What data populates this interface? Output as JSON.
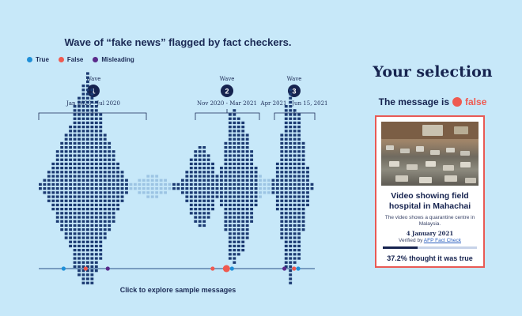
{
  "chart_data": {
    "type": "bar",
    "title": "Wave of “fake news” flagged by fact checkers.",
    "legend": [
      {
        "label": "True",
        "color": "#1e8fd8"
      },
      {
        "label": "False",
        "color": "#ef5a50"
      },
      {
        "label": "Misleading",
        "color": "#5a2a8a"
      }
    ],
    "legend_placement": "top-left",
    "waves": [
      {
        "label": "Wave",
        "number": "1",
        "range": "Jan 2020 - Jul 2020"
      },
      {
        "label": "Wave",
        "number": "2",
        "range": "Nov 2020 - Mar 2021"
      },
      {
        "label": "Wave",
        "number": "3",
        "range": "Apr 2021 - Jun 15, 2021"
      }
    ],
    "colors": {
      "dark": "#1b3a72",
      "light": "#9cc4e3"
    },
    "values": [
      1,
      2,
      4,
      6,
      9,
      11,
      13,
      15,
      20,
      22,
      25,
      28,
      24,
      21,
      18,
      13,
      11,
      9,
      6,
      4,
      2,
      1,
      1,
      2,
      2,
      3,
      3,
      3,
      2,
      2,
      1,
      1,
      1,
      2,
      4,
      7,
      9,
      10,
      10,
      8,
      6,
      3,
      5,
      11,
      18,
      19,
      17,
      16,
      13,
      9,
      5,
      3,
      2,
      2,
      2,
      6,
      13,
      20,
      24,
      19,
      18,
      11,
      5,
      1
    ],
    "intensity": [
      "d",
      "d",
      "d",
      "d",
      "d",
      "d",
      "d",
      "d",
      "d",
      "d",
      "d",
      "d",
      "d",
      "d",
      "d",
      "d",
      "d",
      "d",
      "d",
      "d",
      "d",
      "l",
      "l",
      "l",
      "l",
      "l",
      "l",
      "l",
      "l",
      "l",
      "l",
      "d",
      "d",
      "d",
      "d",
      "d",
      "d",
      "d",
      "d",
      "d",
      "d",
      "d",
      "d",
      "d",
      "d",
      "d",
      "d",
      "d",
      "d",
      "d",
      "d",
      "l",
      "l",
      "l",
      "d",
      "d",
      "d",
      "d",
      "d",
      "d",
      "d",
      "d",
      "d",
      "d"
    ],
    "timeline_dots": [
      {
        "t": 0.09,
        "type": "True"
      },
      {
        "t": 0.17,
        "type": "False"
      },
      {
        "t": 0.25,
        "type": "Misleading"
      },
      {
        "t": 0.63,
        "type": "False"
      },
      {
        "t": 0.68,
        "type": "False",
        "selected": true
      },
      {
        "t": 0.7,
        "type": "True"
      },
      {
        "t": 0.89,
        "type": "Misleading"
      },
      {
        "t": 0.925,
        "type": "False"
      },
      {
        "t": 0.94,
        "type": "True"
      }
    ]
  },
  "footer": "Click to explore sample messages",
  "selection": {
    "title": "Your selection",
    "verdict_prefix": "The message is",
    "verdict": "false",
    "headline": "Video showing field hospital in Mahachai",
    "description": "The video shows a quarantine centre in Malaysia.",
    "date": "4 January 2021",
    "verified_prefix": "Verified by",
    "verified_link": "AFP Fact Check",
    "progress": 0.372,
    "stat": "37.2% thought it was true"
  }
}
